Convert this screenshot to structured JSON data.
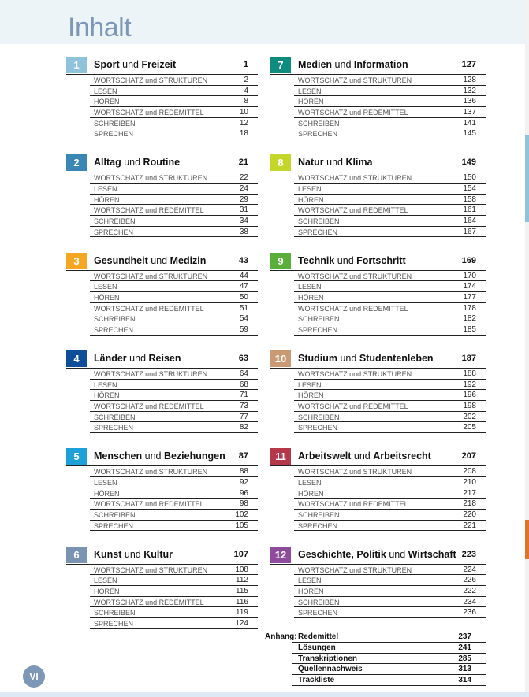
{
  "title": "Inhalt",
  "page_number": "VI",
  "chapters": [
    {
      "n": "1",
      "color": "#8fc3dc",
      "title": [
        [
          "Sport",
          1
        ],
        [
          " und ",
          0
        ],
        [
          "Freizeit",
          1
        ]
      ],
      "page": "1",
      "rows": [
        [
          "WORTSCHATZ und STRUKTUREN",
          "2"
        ],
        [
          "LESEN",
          "4"
        ],
        [
          "HÖREN",
          "8"
        ],
        [
          "WORTSCHATZ und REDEMITTEL",
          "10"
        ],
        [
          "SCHREIBEN",
          "12"
        ],
        [
          "SPRECHEN",
          "18"
        ]
      ]
    },
    {
      "n": "2",
      "color": "#3a86b4",
      "title": [
        [
          "Alltag",
          1
        ],
        [
          " und ",
          0
        ],
        [
          "Routine",
          1
        ]
      ],
      "page": "21",
      "rows": [
        [
          "WORTSCHATZ und STRUKTUREN",
          "22"
        ],
        [
          "LESEN",
          "24"
        ],
        [
          "HÖREN",
          "29"
        ],
        [
          "WORTSCHATZ und REDEMITTEL",
          "31"
        ],
        [
          "SCHREIBEN",
          "34"
        ],
        [
          "SPRECHEN",
          "38"
        ]
      ]
    },
    {
      "n": "3",
      "color": "#f5a623",
      "title": [
        [
          "Gesundheit",
          1
        ],
        [
          " und ",
          0
        ],
        [
          "Medizin",
          1
        ]
      ],
      "page": "43",
      "rows": [
        [
          "WORTSCHATZ und STRUKTUREN",
          "44"
        ],
        [
          "LESEN",
          "47"
        ],
        [
          "HÖREN",
          "50"
        ],
        [
          "WORTSCHATZ und REDEMITTEL",
          "51"
        ],
        [
          "SCHREIBEN",
          "54"
        ],
        [
          "SPRECHEN",
          "59"
        ]
      ]
    },
    {
      "n": "4",
      "color": "#0d4d9a",
      "title": [
        [
          "Länder",
          1
        ],
        [
          " und ",
          0
        ],
        [
          "Reisen",
          1
        ]
      ],
      "page": "63",
      "rows": [
        [
          "WORTSCHATZ und STRUKTUREN",
          "64"
        ],
        [
          "LESEN",
          "68"
        ],
        [
          "HÖREN",
          "71"
        ],
        [
          "WORTSCHATZ und REDEMITTEL",
          "73"
        ],
        [
          "SCHREIBEN",
          "77"
        ],
        [
          "SPRECHEN",
          "82"
        ]
      ]
    },
    {
      "n": "5",
      "color": "#1ea0d8",
      "title": [
        [
          "Menschen",
          1
        ],
        [
          " und ",
          0
        ],
        [
          "Beziehungen",
          1
        ]
      ],
      "page": "87",
      "rows": [
        [
          "WORTSCHATZ und STRUKTUREN",
          "88"
        ],
        [
          "LESEN",
          "92"
        ],
        [
          "HÖREN",
          "96"
        ],
        [
          "WORTSCHATZ und REDEMITTEL",
          "98"
        ],
        [
          "SCHREIBEN",
          "102"
        ],
        [
          "SPRECHEN",
          "105"
        ]
      ]
    },
    {
      "n": "6",
      "color": "#7a93b3",
      "title": [
        [
          "Kunst",
          1
        ],
        [
          " und ",
          0
        ],
        [
          "Kultur",
          1
        ]
      ],
      "page": "107",
      "rows": [
        [
          "WORTSCHATZ und STRUKTUREN",
          "108"
        ],
        [
          "LESEN",
          "112"
        ],
        [
          "HÖREN",
          "115"
        ],
        [
          "WORTSCHATZ und REDEMITTEL",
          "116"
        ],
        [
          "SCHREIBEN",
          "119"
        ],
        [
          "SPRECHEN",
          "124"
        ]
      ]
    },
    {
      "n": "7",
      "color": "#0f8c80",
      "title": [
        [
          "Medien",
          1
        ],
        [
          " und ",
          0
        ],
        [
          "Information",
          1
        ]
      ],
      "page": "127",
      "rows": [
        [
          "WORTSCHATZ und STRUKTUREN",
          "128"
        ],
        [
          "LESEN",
          "132"
        ],
        [
          "HÖREN",
          "136"
        ],
        [
          "WORTSCHATZ und REDEMITTEL",
          "137"
        ],
        [
          "SCHREIBEN",
          "141"
        ],
        [
          "SPRECHEN",
          "145"
        ]
      ]
    },
    {
      "n": "8",
      "color": "#c5d62a",
      "title": [
        [
          "Natur",
          1
        ],
        [
          " und ",
          0
        ],
        [
          "Klima",
          1
        ]
      ],
      "page": "149",
      "rows": [
        [
          "WORTSCHATZ und STRUKTUREN",
          "150"
        ],
        [
          "LESEN",
          "154"
        ],
        [
          "HÖREN",
          "158"
        ],
        [
          "WORTSCHATZ und REDEMITTEL",
          "161"
        ],
        [
          "SCHREIBEN",
          "164"
        ],
        [
          "SPRECHEN",
          "167"
        ]
      ]
    },
    {
      "n": "9",
      "color": "#5aae3a",
      "title": [
        [
          "Technik",
          1
        ],
        [
          " und ",
          0
        ],
        [
          "Fortschritt",
          1
        ]
      ],
      "page": "169",
      "rows": [
        [
          "WORTSCHATZ und STRUKTUREN",
          "170"
        ],
        [
          "LESEN",
          "174"
        ],
        [
          "HÖREN",
          "177"
        ],
        [
          "WORTSCHATZ und REDEMITTEL",
          "178"
        ],
        [
          "SCHREIBEN",
          "182"
        ],
        [
          "SPRECHEN",
          "185"
        ]
      ]
    },
    {
      "n": "10",
      "color": "#c99a74",
      "title": [
        [
          "Studium",
          1
        ],
        [
          " und ",
          0
        ],
        [
          "Studentenleben",
          1
        ]
      ],
      "page": "187",
      "rows": [
        [
          "WORTSCHATZ und STRUKTUREN",
          "188"
        ],
        [
          "LESEN",
          "192"
        ],
        [
          "HÖREN",
          "196"
        ],
        [
          "WORTSCHATZ und REDEMITTEL",
          "198"
        ],
        [
          "SCHREIBEN",
          "202"
        ],
        [
          "SPRECHEN",
          "205"
        ]
      ]
    },
    {
      "n": "11",
      "color": "#b5384a",
      "title": [
        [
          "Arbeitswelt",
          1
        ],
        [
          " und ",
          0
        ],
        [
          "Arbeitsrecht",
          1
        ]
      ],
      "page": "207",
      "rows": [
        [
          "WORTSCHATZ und STRUKTUREN",
          "208"
        ],
        [
          "LESEN",
          "210"
        ],
        [
          "HÖREN",
          "217"
        ],
        [
          "WORTSCHATZ und REDEMITTEL",
          "218"
        ],
        [
          "SCHREIBEN",
          "220"
        ],
        [
          "SPRECHEN",
          "221"
        ]
      ]
    },
    {
      "n": "12",
      "color": "#8e4b9c",
      "title": [
        [
          "Geschichte, Politik",
          1
        ],
        [
          " und ",
          0
        ],
        [
          "Wirtschaft",
          1
        ]
      ],
      "page": "223",
      "rows": [
        [
          "WORTSCHATZ und STRUKTUREN",
          "224"
        ],
        [
          "LESEN",
          "226"
        ],
        [
          "HÖREN",
          "222"
        ],
        [
          "SCHREIBEN",
          "234"
        ],
        [
          "SPRECHEN",
          "236"
        ]
      ]
    }
  ],
  "appendix": {
    "label": "Anhang:",
    "items": [
      [
        "Redemittel",
        "237"
      ],
      [
        "Lösungen",
        "241"
      ],
      [
        "Transkriptionen",
        "285"
      ],
      [
        "Quellennachweis",
        "313"
      ],
      [
        "Trackliste",
        "314"
      ]
    ]
  }
}
